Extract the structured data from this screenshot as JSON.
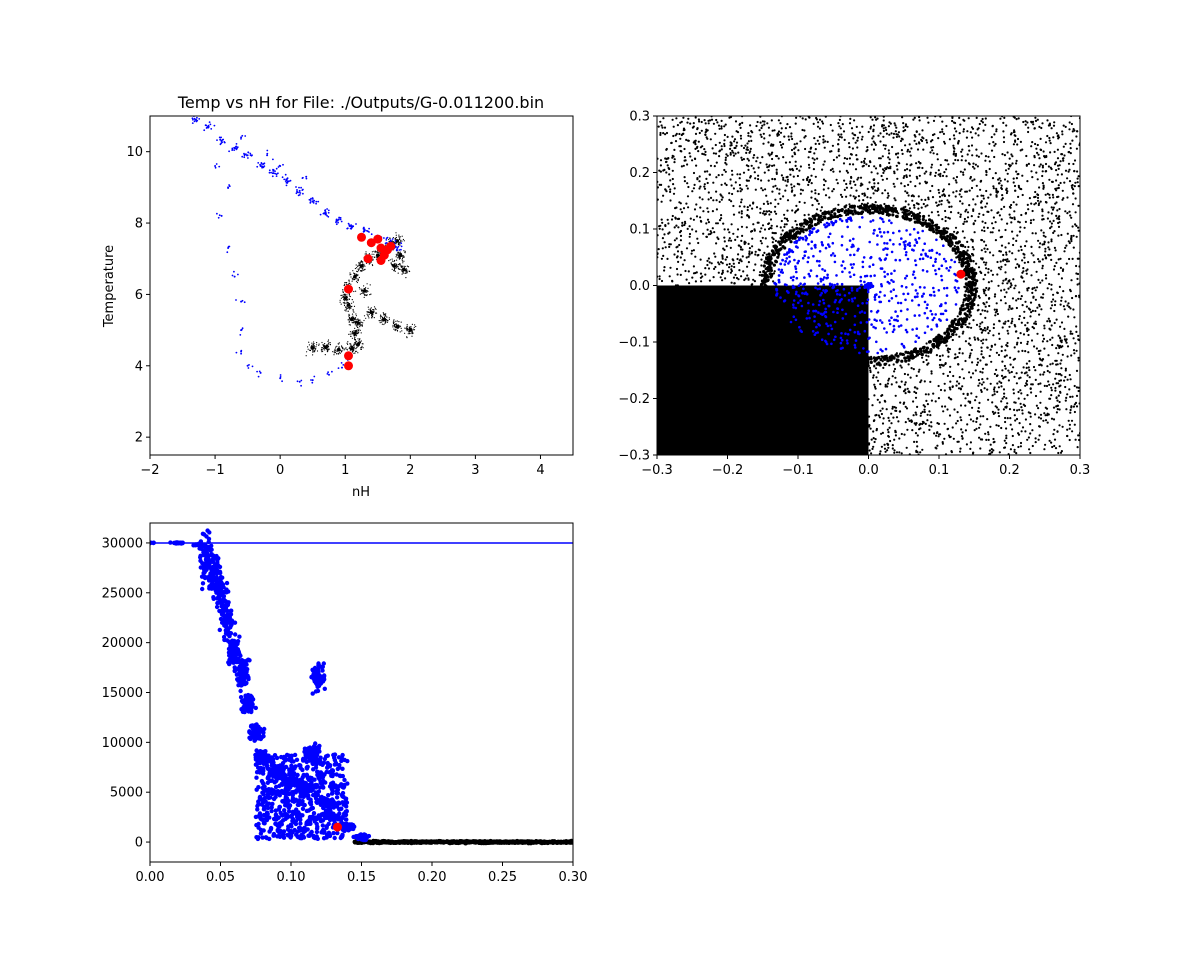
{
  "colors": {
    "background": "#ffffff",
    "gas_black": "#000000",
    "cloud_blue": "#0000ff",
    "marker_red": "#ff0000"
  },
  "chart_data": [
    {
      "type": "scatter",
      "title": "Temp vs nH for File: ./Outputs/G-0.011200.bin",
      "xlabel": "nH",
      "ylabel": "Temperature",
      "xlim": [
        -2,
        4.5
      ],
      "ylim": [
        1.5,
        11
      ],
      "xticks": [
        -2,
        -1,
        0,
        1,
        2,
        3,
        4
      ],
      "yticks": [
        2,
        4,
        6,
        8,
        10
      ],
      "grid": false,
      "series": [
        {
          "color": "#000000",
          "marker": "tiny",
          "points": [
            [
              0.5,
              4.5
            ],
            [
              0.7,
              4.52
            ],
            [
              0.9,
              4.45
            ],
            [
              1.1,
              4.48
            ],
            [
              1.2,
              4.6
            ],
            [
              1.15,
              4.9
            ],
            [
              1.1,
              5.3
            ],
            [
              1.05,
              5.7
            ],
            [
              1.0,
              5.9
            ],
            [
              1.05,
              6.2
            ],
            [
              1.15,
              6.5
            ],
            [
              1.25,
              6.8
            ],
            [
              1.35,
              7.0
            ],
            [
              1.5,
              7.1
            ],
            [
              1.6,
              7.2
            ],
            [
              1.7,
              7.4
            ],
            [
              1.8,
              7.5
            ],
            [
              1.85,
              7.1
            ],
            [
              1.9,
              6.7
            ],
            [
              1.75,
              6.8
            ],
            [
              1.4,
              5.5
            ],
            [
              1.6,
              5.3
            ],
            [
              1.8,
              5.1
            ],
            [
              2.0,
              5.0
            ],
            [
              1.2,
              5.2
            ],
            [
              1.3,
              6.1
            ]
          ]
        },
        {
          "color": "#0000ff",
          "marker": "small",
          "points": [
            [
              -1.3,
              10.9
            ],
            [
              -1.1,
              10.7
            ],
            [
              -0.9,
              10.3
            ],
            [
              -0.7,
              10.1
            ],
            [
              -0.5,
              9.9
            ],
            [
              -0.3,
              9.6
            ],
            [
              -0.1,
              9.4
            ],
            [
              0.1,
              9.2
            ],
            [
              0.3,
              8.9
            ],
            [
              0.5,
              8.6
            ],
            [
              0.7,
              8.3
            ],
            [
              0.9,
              8.1
            ],
            [
              1.1,
              7.9
            ],
            [
              1.3,
              7.8
            ],
            [
              1.5,
              7.6
            ],
            [
              1.7,
              7.5
            ],
            [
              1.8,
              7.3
            ],
            [
              -0.8,
              9.0
            ],
            [
              -0.9,
              8.2
            ],
            [
              -0.8,
              7.3
            ],
            [
              -0.7,
              6.5
            ],
            [
              -0.6,
              5.8
            ],
            [
              -0.6,
              5.0
            ],
            [
              -0.6,
              4.4
            ],
            [
              -0.5,
              4.0
            ],
            [
              -0.3,
              3.8
            ],
            [
              0.0,
              3.65
            ],
            [
              0.3,
              3.55
            ],
            [
              0.5,
              3.6
            ],
            [
              0.75,
              3.75
            ],
            [
              0.95,
              3.95
            ],
            [
              1.05,
              4.2
            ],
            [
              -1.0,
              9.6
            ],
            [
              -0.2,
              9.9
            ],
            [
              0.0,
              9.6
            ],
            [
              0.4,
              9.3
            ],
            [
              -0.6,
              10.4
            ]
          ]
        },
        {
          "color": "#ff0000",
          "marker": "large",
          "points": [
            [
              1.25,
              7.6
            ],
            [
              1.4,
              7.45
            ],
            [
              1.5,
              7.55
            ],
            [
              1.55,
              7.3
            ],
            [
              1.6,
              7.1
            ],
            [
              1.65,
              7.25
            ],
            [
              1.7,
              7.35
            ],
            [
              1.55,
              6.95
            ],
            [
              1.35,
              7.0
            ],
            [
              1.05,
              6.15
            ],
            [
              1.05,
              4.28
            ],
            [
              1.05,
              4.0
            ]
          ]
        }
      ]
    },
    {
      "type": "scatter",
      "xlim": [
        -0.3,
        0.3
      ],
      "ylim": [
        -0.3,
        0.3
      ],
      "xticks": [
        -0.3,
        -0.2,
        -0.1,
        0.0,
        0.1,
        0.2,
        0.3
      ],
      "yticks": [
        -0.3,
        -0.2,
        -0.1,
        0.0,
        0.1,
        0.2,
        0.3
      ],
      "grid": false,
      "regions": {
        "dense_square": {
          "x": [
            -0.3,
            0.0
          ],
          "y": [
            -0.3,
            0.0
          ]
        },
        "cloud": {
          "center": [
            0.0,
            0.0
          ],
          "rx": 0.135,
          "ry": 0.125
        }
      },
      "series": [
        {
          "color": "#000000",
          "marker": "tiny",
          "note": "background gas particles"
        },
        {
          "color": "#0000ff",
          "marker": "small",
          "note": "cloud particles"
        },
        {
          "color": "#ff0000",
          "marker": "large",
          "points": [
            [
              0.131,
              0.02
            ]
          ]
        }
      ]
    },
    {
      "type": "scatter",
      "xlim": [
        0.0,
        0.3
      ],
      "ylim": [
        -2000,
        32000
      ],
      "xticks": [
        0.0,
        0.05,
        0.1,
        0.15,
        0.2,
        0.25,
        0.3
      ],
      "xtick_labels": [
        "0.00",
        "0.05",
        "0.10",
        "0.15",
        "0.20",
        "0.25",
        "0.30"
      ],
      "yticks": [
        0,
        5000,
        10000,
        15000,
        20000,
        25000,
        30000
      ],
      "grid": false,
      "hline": {
        "y": 30000,
        "color": "#0000ff"
      },
      "series": [
        {
          "color": "#0000ff",
          "marker": "small",
          "points": [
            [
              0.0,
              30000
            ],
            [
              0.02,
              30000
            ],
            [
              0.035,
              29800
            ],
            [
              0.04,
              28500
            ],
            [
              0.045,
              27000
            ],
            [
              0.05,
              25000
            ],
            [
              0.055,
              22000
            ],
            [
              0.06,
              19000
            ],
            [
              0.065,
              17000
            ],
            [
              0.07,
              14000
            ],
            [
              0.075,
              11000
            ],
            [
              0.08,
              8500
            ],
            [
              0.09,
              7000
            ],
            [
              0.1,
              6000
            ],
            [
              0.11,
              5500
            ],
            [
              0.115,
              9000
            ],
            [
              0.12,
              16500
            ],
            [
              0.125,
              4000
            ],
            [
              0.13,
              2500
            ],
            [
              0.14,
              1500
            ],
            [
              0.15,
              500
            ]
          ]
        },
        {
          "color": "#000000",
          "marker": "small",
          "points": [
            [
              0.15,
              200
            ],
            [
              0.2,
              0
            ],
            [
              0.25,
              0
            ],
            [
              0.3,
              0
            ]
          ]
        },
        {
          "color": "#ff0000",
          "marker": "large",
          "points": [
            [
              0.133,
              1500
            ]
          ]
        }
      ]
    }
  ]
}
